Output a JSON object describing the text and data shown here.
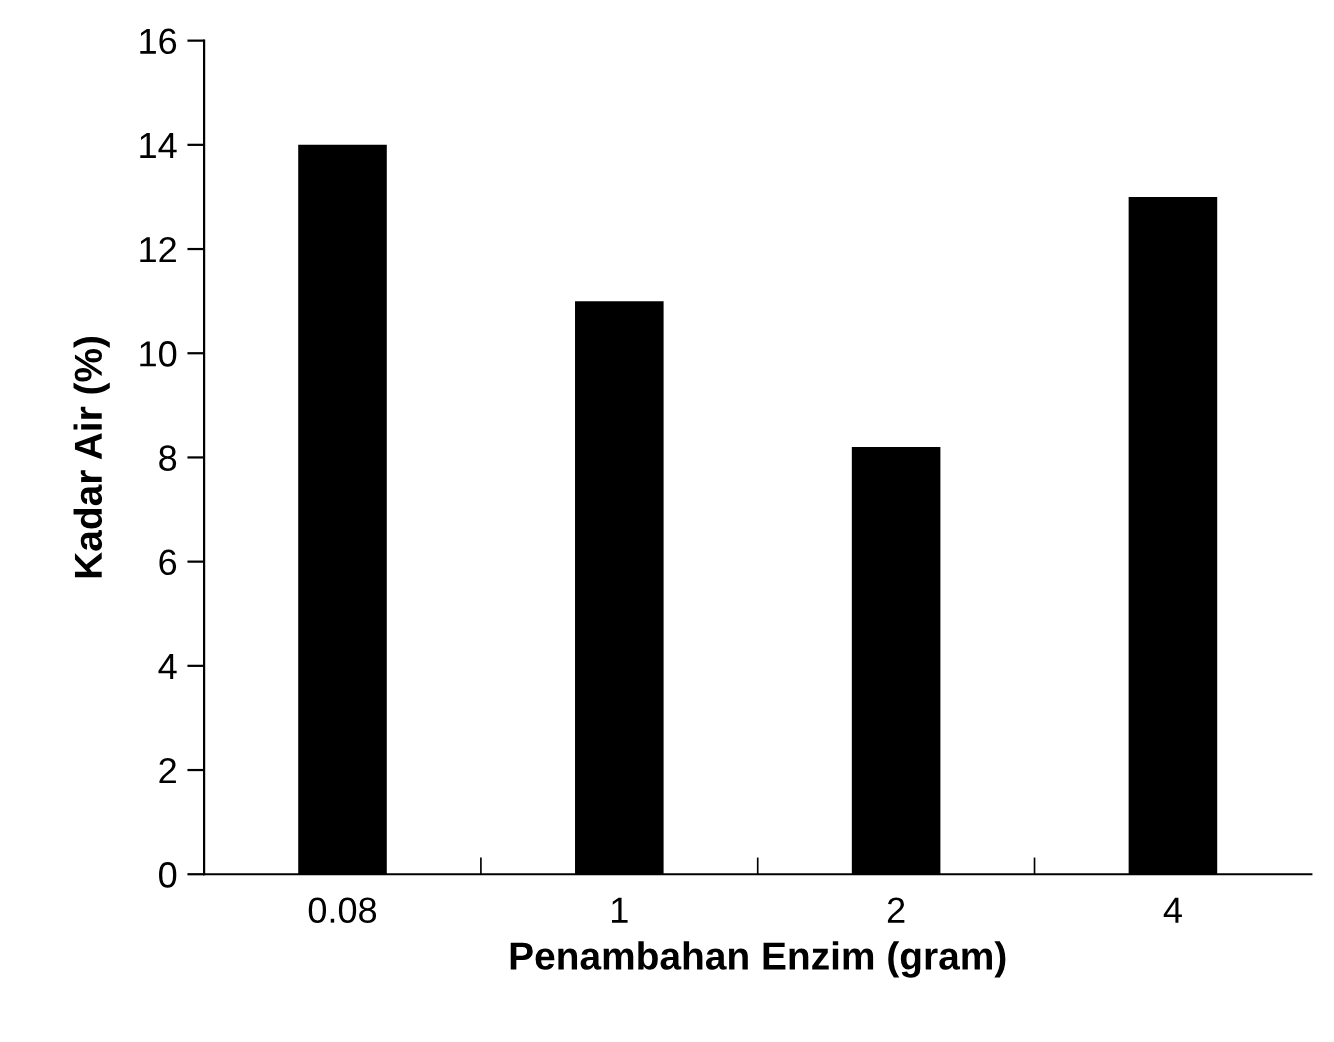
{
  "chart_data": {
    "type": "bar",
    "xlabel": "Penambahan Enzim (gram)",
    "ylabel": "Kadar Air (%)",
    "categories": [
      "0.08",
      "1",
      "2",
      "4"
    ],
    "values": [
      14,
      11,
      8.2,
      13
    ],
    "color": "#000000",
    "ylim": [
      0,
      16
    ],
    "yticks": [
      0,
      2,
      4,
      6,
      8,
      10,
      12,
      14,
      16
    ],
    "grid": false,
    "legend": false
  }
}
